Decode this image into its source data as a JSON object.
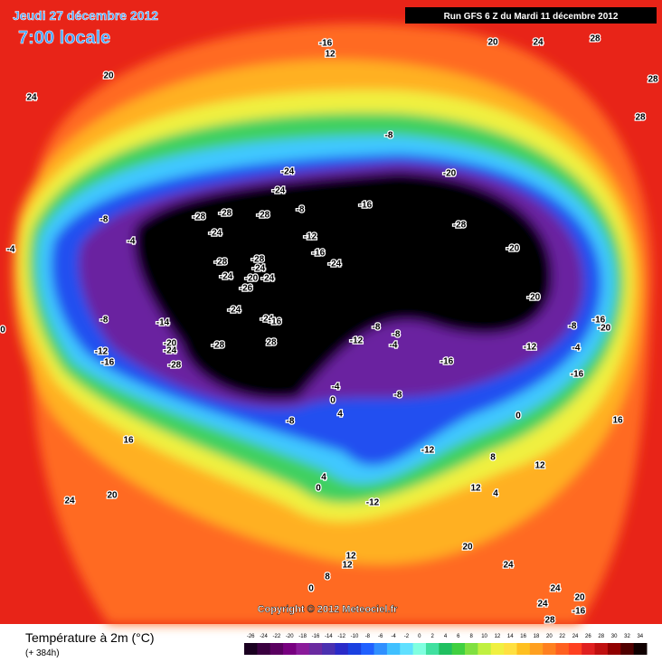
{
  "header": {
    "date": "Jeudi 27 décembre 2012",
    "time": "7:00 locale",
    "run": "Run GFS 6 Z du Mardi 11 décembre 2012"
  },
  "map": {
    "copyright": "Copyright © 2012 Meteociel.fr",
    "labels": [
      -16,
      12,
      20,
      24,
      28,
      20,
      24,
      28,
      28,
      -8,
      -24,
      -20,
      -24,
      -8,
      -28,
      -28,
      -28,
      -16,
      -8,
      -28,
      -24,
      -12,
      -4,
      -16,
      -20,
      -24,
      -28,
      -28,
      -24,
      -24,
      -20,
      -24,
      -26,
      -20,
      -24,
      -8,
      -14,
      -24,
      -16,
      -16,
      -20,
      -8,
      -8,
      -8,
      -12,
      -20,
      -24,
      -28,
      28,
      -4,
      -12,
      -12,
      -4,
      -16,
      -28,
      -16,
      -16,
      -4,
      -8,
      0,
      4,
      0,
      16,
      -8,
      16,
      -12,
      8,
      12,
      4,
      12,
      4,
      0,
      20,
      24,
      -12,
      20,
      24,
      12,
      12,
      8,
      0,
      24,
      20,
      24,
      -16,
      28,
      -4,
      0
    ]
  },
  "legend": {
    "title": "Température à 2m (°C)",
    "lead": "(+ 384h)",
    "ticks": [
      -26,
      -24,
      -22,
      -20,
      -18,
      -16,
      -14,
      -12,
      -10,
      -8,
      -6,
      -4,
      -2,
      0,
      2,
      4,
      6,
      8,
      10,
      12,
      14,
      16,
      18,
      20,
      22,
      24,
      26,
      28,
      30,
      32,
      34
    ],
    "colors": [
      "#1a0020",
      "#3a0040",
      "#5a0060",
      "#780080",
      "#8a1a9a",
      "#6a2aa0",
      "#4a30b0",
      "#2a2ac8",
      "#1a40e0",
      "#2060ff",
      "#3090ff",
      "#40c0ff",
      "#60e0ff",
      "#80ffe0",
      "#40e0a0",
      "#20c060",
      "#40d040",
      "#80e040",
      "#c0f040",
      "#f0f040",
      "#ffe040",
      "#ffc020",
      "#ffa020",
      "#ff8020",
      "#ff6020",
      "#ff4020",
      "#e02020",
      "#c01010",
      "#900000",
      "#500000",
      "#100000"
    ]
  }
}
